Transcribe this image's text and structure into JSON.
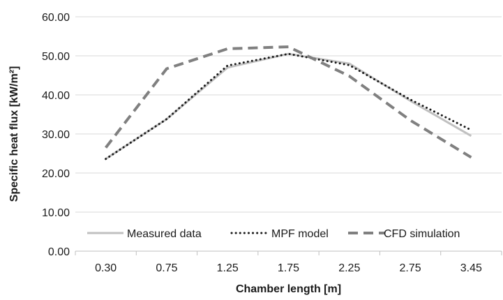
{
  "chart_data": {
    "type": "line",
    "categories": [
      "0.30",
      "0.75",
      "1.25",
      "1.75",
      "2.25",
      "2.75",
      "3.45"
    ],
    "series": [
      {
        "name": "Measured data",
        "values": [
          23.6,
          33.8,
          47.0,
          50.5,
          48.0,
          38.5,
          29.5
        ],
        "color": "#c0c0c0",
        "style": "solid"
      },
      {
        "name": "MPF model",
        "values": [
          23.6,
          33.8,
          47.5,
          50.5,
          47.6,
          38.8,
          31.0
        ],
        "color": "#1a1a1a",
        "style": "dotted"
      },
      {
        "name": "CFD simulation",
        "values": [
          26.5,
          46.7,
          51.8,
          52.3,
          44.8,
          33.5,
          24.0
        ],
        "color": "#808080",
        "style": "dashed"
      }
    ],
    "title": "",
    "xlabel": "Chamber length [m]",
    "ylabel": "Specific heat flux [kW/m²]",
    "ylim": [
      0,
      60
    ],
    "yticks": [
      "0.00",
      "10.00",
      "20.00",
      "30.00",
      "40.00",
      "50.00",
      "60.00"
    ],
    "grid": "horizontal",
    "legend": "bottom-right"
  }
}
